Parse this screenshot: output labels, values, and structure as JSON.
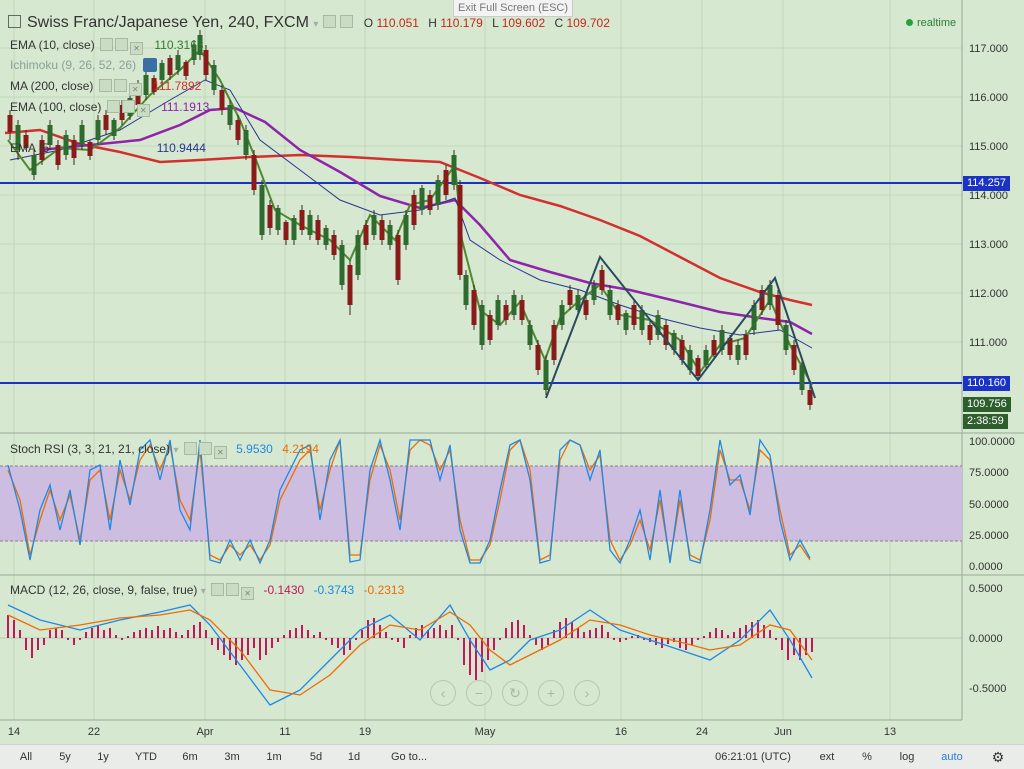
{
  "exit_fullscreen": "Exit Full Screen (ESC)",
  "symbol_title": "Swiss Franc/Japanese Yen, 240, FXCM",
  "ohlc": {
    "o_label": "O",
    "o": "110.051",
    "h_label": "H",
    "h": "110.179",
    "l_label": "L",
    "l": "109.602",
    "c_label": "C",
    "c": "109.702"
  },
  "realtime_label": "realtime",
  "indicators": [
    {
      "label": "EMA (10, close)",
      "value": "110.3163",
      "color": "#2e7d32"
    },
    {
      "label": "Ichimoku (9, 26, 52, 26)",
      "value": "",
      "color": "#8aa09a"
    },
    {
      "label": "MA (200, close)",
      "value": "111.7892",
      "color": "#d32f2f"
    },
    {
      "label": "EMA (100, close)",
      "value": "111.1913",
      "color": "#8e24aa"
    },
    {
      "label": "EMA (5",
      "value": "110.9444",
      "color": "#283593"
    }
  ],
  "price_axis": [
    "117.000",
    "116.000",
    "115.000",
    "114.000",
    "113.000",
    "112.000",
    "111.000"
  ],
  "price_tags": [
    {
      "text": "114.257",
      "color": "#1a33c4"
    },
    {
      "text": "110.160",
      "color": "#1a33c4"
    },
    {
      "text": "109.756",
      "color": "#2e5d2e"
    },
    {
      "text": "2:38:59",
      "color": "#2e5d2e"
    }
  ],
  "stoch": {
    "label": "Stoch RSI (3, 3, 21, 21, close)",
    "k": "5.9530",
    "d": "4.2194",
    "k_color": "#1e88e5",
    "d_color": "#ef6c00",
    "axis": [
      "100.0000",
      "75.0000",
      "50.0000",
      "25.0000",
      "0.0000"
    ]
  },
  "macd": {
    "label": "MACD (12, 26, close, 9, false, true)",
    "hist": "-0.1430",
    "macd": "-0.3743",
    "signal": "-0.2313",
    "axis": [
      "0.5000",
      "0.0000",
      "-0.5000"
    ]
  },
  "time_axis": [
    "14",
    "22",
    "Apr",
    "11",
    "19",
    "May",
    "16",
    "24",
    "Jun",
    "13"
  ],
  "bottom_bar": {
    "ranges": [
      "All",
      "5y",
      "1y",
      "YTD",
      "6m",
      "3m",
      "1m",
      "5d",
      "1d"
    ],
    "goto": "Go to...",
    "clock": "06:21:01 (UTC)",
    "ext": "ext",
    "percent": "%",
    "log": "log",
    "auto": "auto"
  },
  "colors": {
    "background": "#d6e8cf",
    "support_line": "#1a33c4",
    "ma200": "#d32f2f",
    "ema100": "#8e24aa",
    "ema10": "#2e7d32",
    "pattern": "#2a4a5e"
  }
}
